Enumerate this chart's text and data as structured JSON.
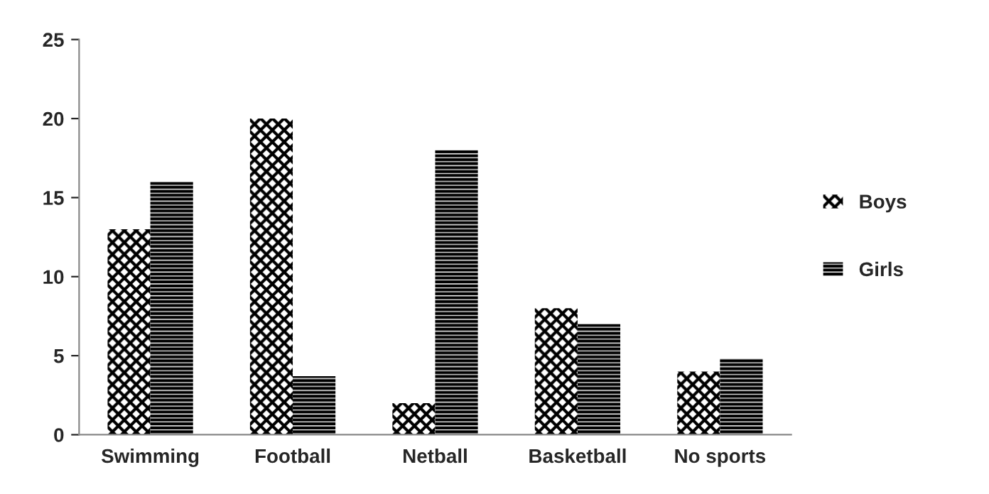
{
  "chart_data": {
    "type": "bar",
    "categories": [
      "Swimming",
      "Football",
      "Netball",
      "Basketball",
      "No sports"
    ],
    "series": [
      {
        "name": "Boys",
        "color": "#000000",
        "values": [
          13,
          20,
          2,
          8,
          4
        ]
      },
      {
        "name": "Girls",
        "color": "#000000",
        "values": [
          16,
          3.7,
          18,
          7,
          4.8
        ]
      }
    ],
    "ylim": [
      0,
      25
    ],
    "yticks": [
      0,
      5,
      10,
      15,
      20,
      25
    ],
    "grid": false,
    "legend": "right"
  }
}
